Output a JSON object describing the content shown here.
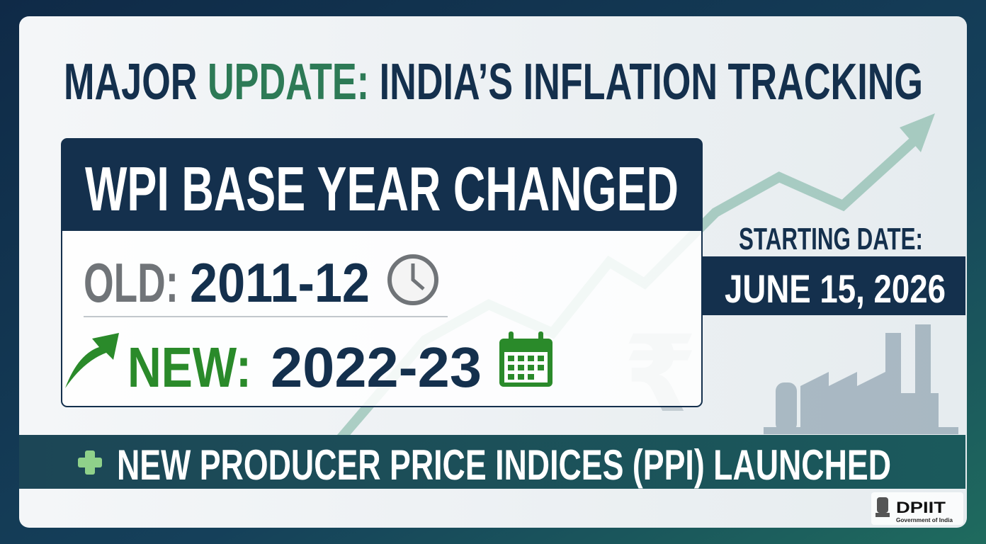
{
  "header": {
    "title": [
      "MAJOR",
      "UPDATE:",
      "INDIA’S INFLATION TRACKING"
    ]
  },
  "card": {
    "heading": "WPI BASE YEAR CHANGED",
    "old_label": "OLD:",
    "old_value": "2011-12",
    "new_label": "NEW:",
    "new_value": "2022-23"
  },
  "start": {
    "label": "STARTING DATE:",
    "date": "JUNE 15, 2026"
  },
  "banner": {
    "text": "NEW PRODUCER PRICE INDICES (PPI) LAUNCHED"
  },
  "logo": {
    "name": "DPIIT",
    "sub": "Government of India"
  }
}
